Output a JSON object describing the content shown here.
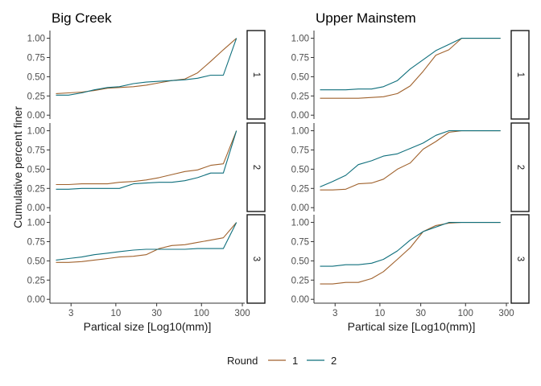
{
  "chart_data": {
    "type": "line",
    "ylabel": "Cumulative percent finer",
    "legend": {
      "title": "Round",
      "position": "bottom"
    },
    "x_scale": "log10",
    "xlim": [
      1.7,
      320
    ],
    "ylim": [
      -0.05,
      1.1
    ],
    "x_ticks": [
      3,
      10,
      30,
      100,
      300
    ],
    "x_tick_labels": [
      "3",
      "10",
      "30",
      "100",
      "300"
    ],
    "y_ticks": [
      0,
      0.25,
      0.5,
      0.75,
      1.0
    ],
    "y_tick_labels": [
      "0.00",
      "0.25",
      "0.50",
      "0.75",
      "1.00"
    ],
    "grid": false,
    "rows": [
      "1",
      "2",
      "3"
    ],
    "series_styles": [
      {
        "name": "1",
        "color": "#a0622d"
      },
      {
        "name": "2",
        "color": "#0f6f7c"
      }
    ],
    "panels": [
      {
        "title": "Big Creek",
        "xlabel": "Partical size [Log10(mm)]",
        "facets": [
          {
            "row": "1",
            "series": [
              {
                "name": "1",
                "x": [
                  2,
                  2.8,
                  4,
                  5.6,
                  8,
                  11,
                  16,
                  22.6,
                  32,
                  45,
                  64,
                  90,
                  128,
                  180,
                  256
                ],
                "y": [
                  0.28,
                  0.29,
                  0.3,
                  0.32,
                  0.35,
                  0.36,
                  0.37,
                  0.39,
                  0.42,
                  0.45,
                  0.47,
                  0.55,
                  0.7,
                  0.85,
                  1.0
                ]
              },
              {
                "name": "2",
                "x": [
                  2,
                  2.8,
                  4,
                  5.6,
                  8,
                  11,
                  16,
                  22.6,
                  32,
                  45,
                  64,
                  90,
                  128,
                  180,
                  256
                ],
                "y": [
                  0.26,
                  0.26,
                  0.29,
                  0.33,
                  0.36,
                  0.37,
                  0.41,
                  0.43,
                  0.44,
                  0.45,
                  0.46,
                  0.48,
                  0.52,
                  0.52,
                  1.0
                ]
              }
            ]
          },
          {
            "row": "2",
            "series": [
              {
                "name": "1",
                "x": [
                  2,
                  2.8,
                  4,
                  5.6,
                  8,
                  11,
                  16,
                  22.6,
                  32,
                  45,
                  64,
                  90,
                  128,
                  180,
                  256
                ],
                "y": [
                  0.3,
                  0.3,
                  0.31,
                  0.31,
                  0.31,
                  0.33,
                  0.34,
                  0.36,
                  0.39,
                  0.43,
                  0.47,
                  0.49,
                  0.55,
                  0.57,
                  1.0
                ]
              },
              {
                "name": "2",
                "x": [
                  2,
                  2.8,
                  4,
                  5.6,
                  8,
                  11,
                  16,
                  22.6,
                  32,
                  45,
                  64,
                  90,
                  128,
                  180,
                  256
                ],
                "y": [
                  0.24,
                  0.24,
                  0.25,
                  0.25,
                  0.25,
                  0.25,
                  0.31,
                  0.32,
                  0.33,
                  0.33,
                  0.35,
                  0.39,
                  0.45,
                  0.45,
                  1.0
                ]
              }
            ]
          },
          {
            "row": "3",
            "series": [
              {
                "name": "1",
                "x": [
                  2,
                  2.8,
                  4,
                  5.6,
                  8,
                  11,
                  16,
                  22.6,
                  32,
                  45,
                  64,
                  90,
                  128,
                  180,
                  256
                ],
                "y": [
                  0.48,
                  0.48,
                  0.49,
                  0.51,
                  0.53,
                  0.55,
                  0.56,
                  0.58,
                  0.66,
                  0.7,
                  0.71,
                  0.74,
                  0.77,
                  0.8,
                  1.0
                ]
              },
              {
                "name": "2",
                "x": [
                  2,
                  2.8,
                  4,
                  5.6,
                  8,
                  11,
                  16,
                  22.6,
                  32,
                  45,
                  64,
                  90,
                  128,
                  180,
                  256
                ],
                "y": [
                  0.51,
                  0.53,
                  0.55,
                  0.58,
                  0.6,
                  0.62,
                  0.64,
                  0.65,
                  0.65,
                  0.65,
                  0.65,
                  0.66,
                  0.66,
                  0.66,
                  1.0
                ]
              }
            ]
          }
        ]
      },
      {
        "title": "Upper Mainstem",
        "xlabel": "Partical size [Log10(mm)]",
        "facets": [
          {
            "row": "1",
            "series": [
              {
                "name": "1",
                "x": [
                  2,
                  2.8,
                  4,
                  5.6,
                  8,
                  11,
                  16,
                  22.6,
                  32,
                  45,
                  64,
                  90,
                  128,
                  180,
                  256
                ],
                "y": [
                  0.22,
                  0.22,
                  0.22,
                  0.22,
                  0.23,
                  0.24,
                  0.28,
                  0.38,
                  0.57,
                  0.78,
                  0.85,
                  1.0,
                  1.0,
                  1.0,
                  1.0
                ]
              },
              {
                "name": "2",
                "x": [
                  2,
                  2.8,
                  4,
                  5.6,
                  8,
                  11,
                  16,
                  22.6,
                  32,
                  45,
                  64,
                  90,
                  128,
                  180,
                  256
                ],
                "y": [
                  0.33,
                  0.33,
                  0.33,
                  0.34,
                  0.34,
                  0.37,
                  0.45,
                  0.6,
                  0.72,
                  0.84,
                  0.92,
                  1.0,
                  1.0,
                  1.0,
                  1.0
                ]
              }
            ]
          },
          {
            "row": "2",
            "series": [
              {
                "name": "1",
                "x": [
                  2,
                  2.8,
                  4,
                  5.6,
                  8,
                  11,
                  16,
                  22.6,
                  32,
                  45,
                  64,
                  90,
                  128,
                  180,
                  256
                ],
                "y": [
                  0.23,
                  0.23,
                  0.24,
                  0.31,
                  0.32,
                  0.37,
                  0.5,
                  0.58,
                  0.76,
                  0.86,
                  0.98,
                  1.0,
                  1.0,
                  1.0,
                  1.0
                ]
              },
              {
                "name": "2",
                "x": [
                  2,
                  2.8,
                  4,
                  5.6,
                  8,
                  11,
                  16,
                  22.6,
                  32,
                  45,
                  64,
                  90,
                  128,
                  180,
                  256
                ],
                "y": [
                  0.27,
                  0.34,
                  0.42,
                  0.56,
                  0.61,
                  0.67,
                  0.7,
                  0.77,
                  0.84,
                  0.94,
                  1.0,
                  1.0,
                  1.0,
                  1.0,
                  1.0
                ]
              }
            ]
          },
          {
            "row": "3",
            "series": [
              {
                "name": "1",
                "x": [
                  2,
                  2.8,
                  4,
                  5.6,
                  8,
                  11,
                  16,
                  22.6,
                  32,
                  45,
                  64,
                  90,
                  128,
                  180,
                  256
                ],
                "y": [
                  0.2,
                  0.2,
                  0.22,
                  0.22,
                  0.27,
                  0.36,
                  0.52,
                  0.67,
                  0.88,
                  0.96,
                  0.99,
                  1.0,
                  1.0,
                  1.0,
                  1.0
                ]
              },
              {
                "name": "2",
                "x": [
                  2,
                  2.8,
                  4,
                  5.6,
                  8,
                  11,
                  16,
                  22.6,
                  32,
                  45,
                  64,
                  90,
                  128,
                  180,
                  256
                ],
                "y": [
                  0.43,
                  0.43,
                  0.45,
                  0.45,
                  0.47,
                  0.52,
                  0.63,
                  0.77,
                  0.88,
                  0.94,
                  1.0,
                  1.0,
                  1.0,
                  1.0,
                  1.0
                ]
              }
            ]
          }
        ]
      }
    ]
  }
}
